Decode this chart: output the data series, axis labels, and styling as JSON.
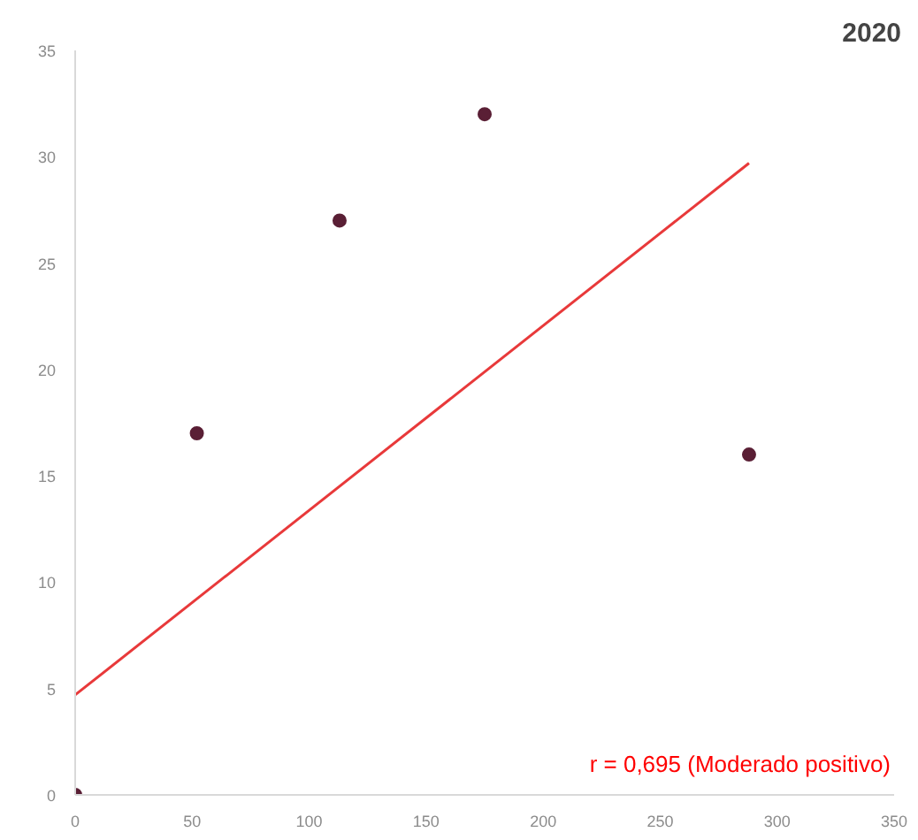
{
  "chart_data": {
    "type": "scatter",
    "title": "2020",
    "series": [
      {
        "color": "#5a1f35",
        "x": [
          0,
          52,
          113,
          175,
          288
        ],
        "values": [
          0,
          17,
          27,
          32,
          16
        ],
        "marker": "circle"
      },
      {
        "type": "line",
        "color": "#e8393a",
        "x": [
          0,
          288
        ],
        "values": [
          4.7,
          29.7
        ]
      }
    ],
    "annotations": [
      "r = 0,695 (Moderado positivo)"
    ],
    "xlim": [
      0,
      350
    ],
    "xticks": [
      0,
      50,
      100,
      150,
      200,
      250,
      300,
      350
    ],
    "ylim": [
      0,
      35
    ],
    "yticks": [
      0,
      5,
      10,
      15,
      20,
      25,
      30,
      35
    ],
    "grid": false
  }
}
